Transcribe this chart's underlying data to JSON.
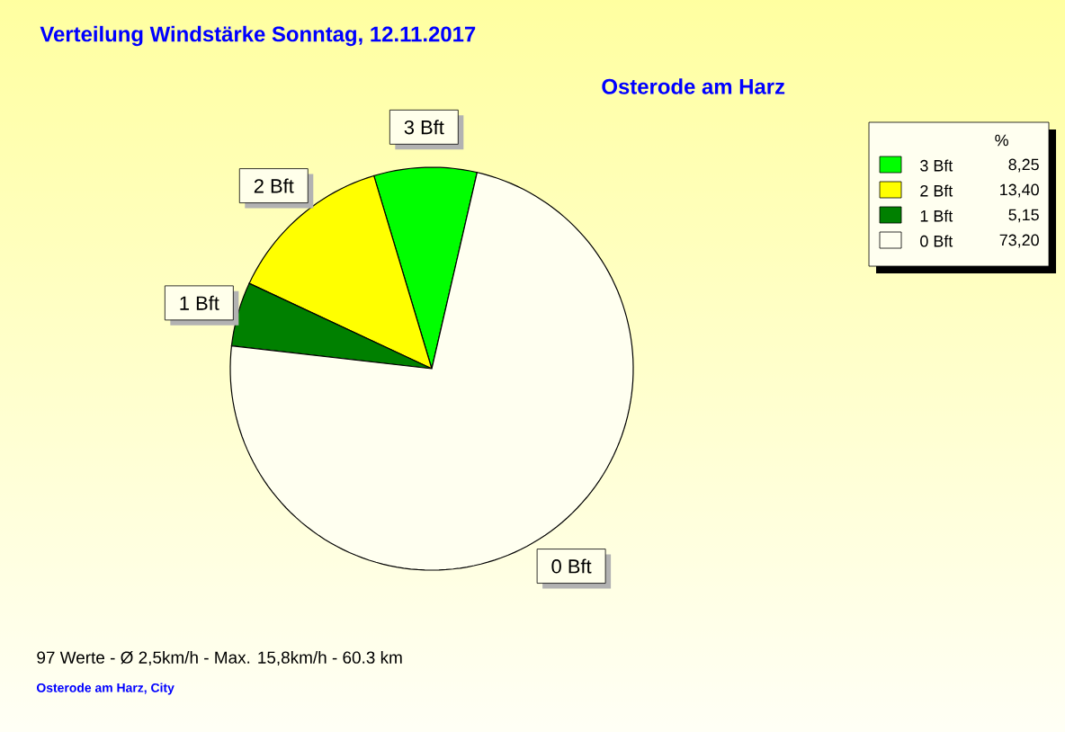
{
  "chart_data": {
    "type": "pie",
    "title": "Verteilung Windstärke  Sonntag, 12.11.2017",
    "subtitle": "Osterode am Harz",
    "categories": [
      "3 Bft",
      "2 Bft",
      "1 Bft",
      "0 Bft"
    ],
    "values": [
      8.25,
      13.4,
      5.15,
      73.2
    ],
    "colors": [
      "#00ff00",
      "#ffff00",
      "#008000",
      "#fffff0"
    ],
    "value_labels": [
      "8,25",
      "13,40",
      "5,15",
      "73,20"
    ],
    "legend": "top right",
    "legend_title": "%",
    "annotations": [
      "97 Werte   -   Ø 2,5km/h  -  Max. 15,8km/h   -   60.3 km",
      "Osterode am Harz, City"
    ]
  }
}
